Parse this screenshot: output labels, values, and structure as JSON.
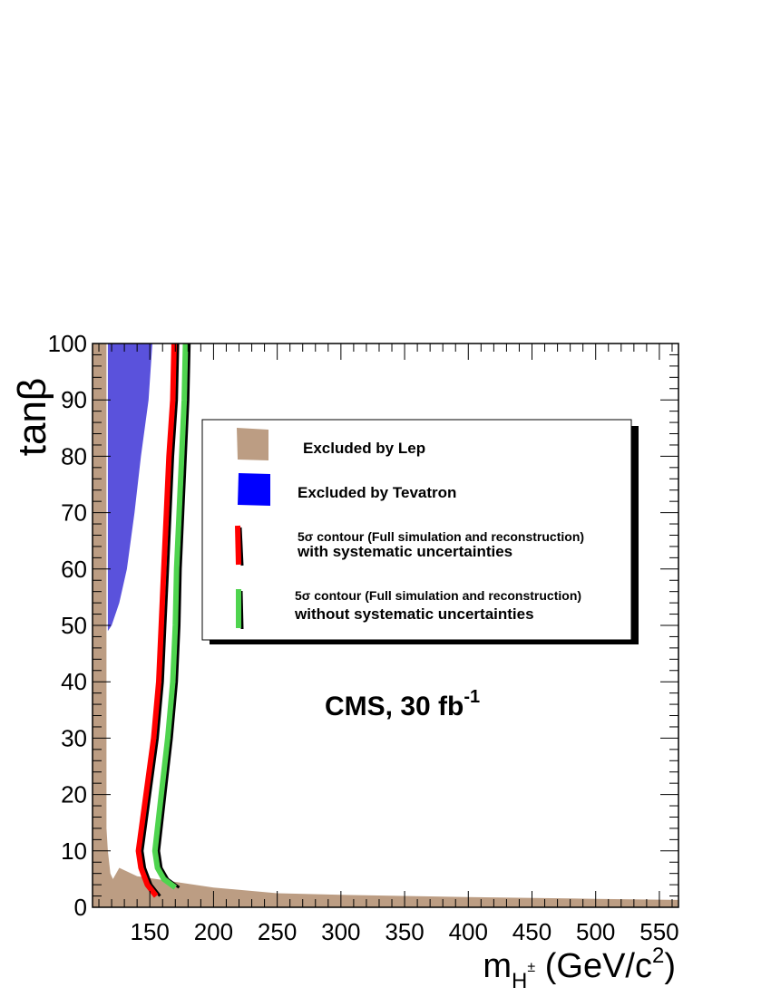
{
  "chart_data": {
    "type": "area",
    "xlim": [
      105,
      565
    ],
    "ylim": [
      0,
      100
    ],
    "x_ticks": [
      150,
      200,
      250,
      300,
      350,
      400,
      450,
      500,
      550
    ],
    "y_ticks": [
      0,
      10,
      20,
      30,
      40,
      50,
      60,
      70,
      80,
      90,
      100
    ],
    "x_tick_labels": [
      "150",
      "200",
      "250",
      "300",
      "350",
      "400",
      "450",
      "500",
      "550"
    ],
    "y_tick_labels": [
      "0",
      "10",
      "20",
      "30",
      "40",
      "50",
      "60",
      "70",
      "80",
      "90",
      "100"
    ],
    "xlabel": {
      "main": "m",
      "sub": "H",
      "sup": "±",
      "unit": " (GeV/c",
      "unit_sup": "2",
      "unit_end": ")"
    },
    "ylabel": "tanβ",
    "annotation": {
      "text": "CMS, 30 fb",
      "sup": "-1"
    },
    "legend": {
      "placement": "center",
      "entries": [
        {
          "key": "lep",
          "line1": "Excluded by Lep",
          "line2": ""
        },
        {
          "key": "tevatron",
          "line1": "Excluded by Tevatron",
          "line2": ""
        },
        {
          "key": "syst",
          "line1": "5σ contour (Full simulation and reconstruction)",
          "line2": "with systematic uncertainties"
        },
        {
          "key": "nosyst",
          "line1": "5σ contour (Full simulation and reconstruction)",
          "line2": "without systematic uncertainties"
        }
      ]
    },
    "colors": {
      "lep": "#bc9d83",
      "tevatron": "#5a52dc",
      "tevatron_legend": "#0000ff",
      "syst": "#ff0000",
      "nosyst": "#4fd44f",
      "outline": "#000000"
    },
    "series": [
      {
        "key": "lep",
        "kind": "area",
        "points": [
          [
            105,
            0
          ],
          [
            105,
            100
          ],
          [
            116,
            100
          ],
          [
            116,
            14
          ],
          [
            117,
            10
          ],
          [
            119,
            6
          ],
          [
            121,
            5
          ],
          [
            126,
            7
          ],
          [
            140,
            5.5
          ],
          [
            170,
            4.5
          ],
          [
            200,
            3.5
          ],
          [
            250,
            2.5
          ],
          [
            300,
            2.2
          ],
          [
            400,
            1.8
          ],
          [
            500,
            1.5
          ],
          [
            565,
            1.3
          ],
          [
            565,
            0
          ]
        ]
      },
      {
        "key": "tevatron",
        "kind": "area",
        "points": [
          [
            117,
            49
          ],
          [
            117,
            100
          ],
          [
            152,
            100
          ],
          [
            149,
            90
          ],
          [
            143,
            80
          ],
          [
            138,
            70
          ],
          [
            132,
            60
          ],
          [
            126,
            54
          ],
          [
            120,
            50
          ]
        ]
      },
      {
        "key": "syst",
        "kind": "line",
        "points": [
          [
            169,
            100
          ],
          [
            168,
            90
          ],
          [
            165,
            80
          ],
          [
            163,
            70
          ],
          [
            161,
            60
          ],
          [
            159,
            50
          ],
          [
            157,
            40
          ],
          [
            153,
            30
          ],
          [
            147,
            20
          ],
          [
            141,
            10
          ],
          [
            143,
            7
          ],
          [
            148,
            4
          ],
          [
            155,
            2
          ]
        ]
      },
      {
        "key": "nosyst",
        "kind": "line",
        "points": [
          [
            178,
            100
          ],
          [
            177,
            90
          ],
          [
            175,
            80
          ],
          [
            173,
            70
          ],
          [
            171,
            60
          ],
          [
            170,
            50
          ],
          [
            168,
            40
          ],
          [
            164,
            30
          ],
          [
            159,
            20
          ],
          [
            154,
            10
          ],
          [
            156,
            7
          ],
          [
            161,
            5
          ],
          [
            170,
            3.5
          ]
        ]
      }
    ]
  }
}
